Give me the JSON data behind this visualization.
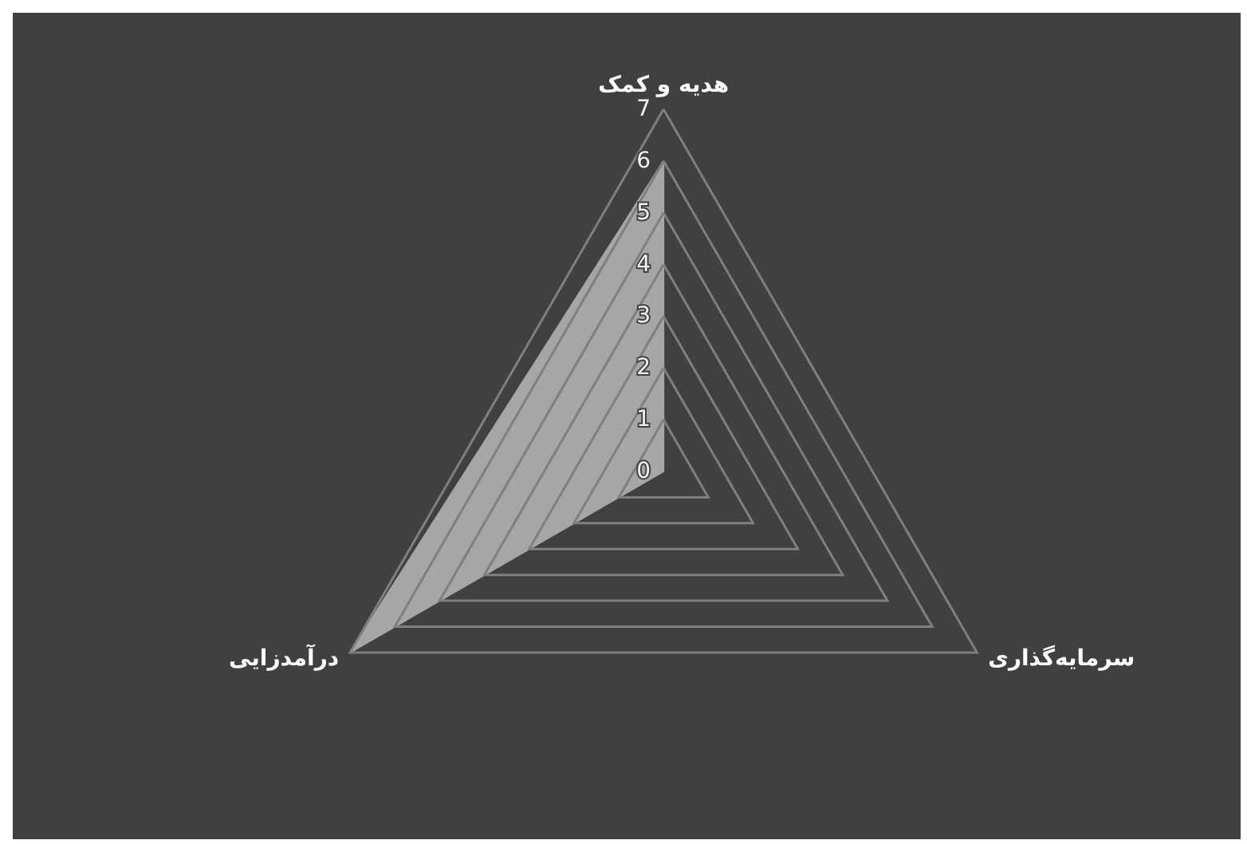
{
  "chart_data": {
    "type": "radar",
    "categories": [
      "هدیه و کمک",
      "سرمایه‌گذاری",
      "درآمدزایی"
    ],
    "series": [
      {
        "color": "#a6a6a6",
        "values": [
          6,
          0,
          7
        ]
      }
    ],
    "ylim": [
      0,
      7
    ],
    "yticks": [
      0,
      1,
      2,
      3,
      4,
      5,
      6,
      7
    ],
    "grid": true,
    "marker": "none"
  }
}
